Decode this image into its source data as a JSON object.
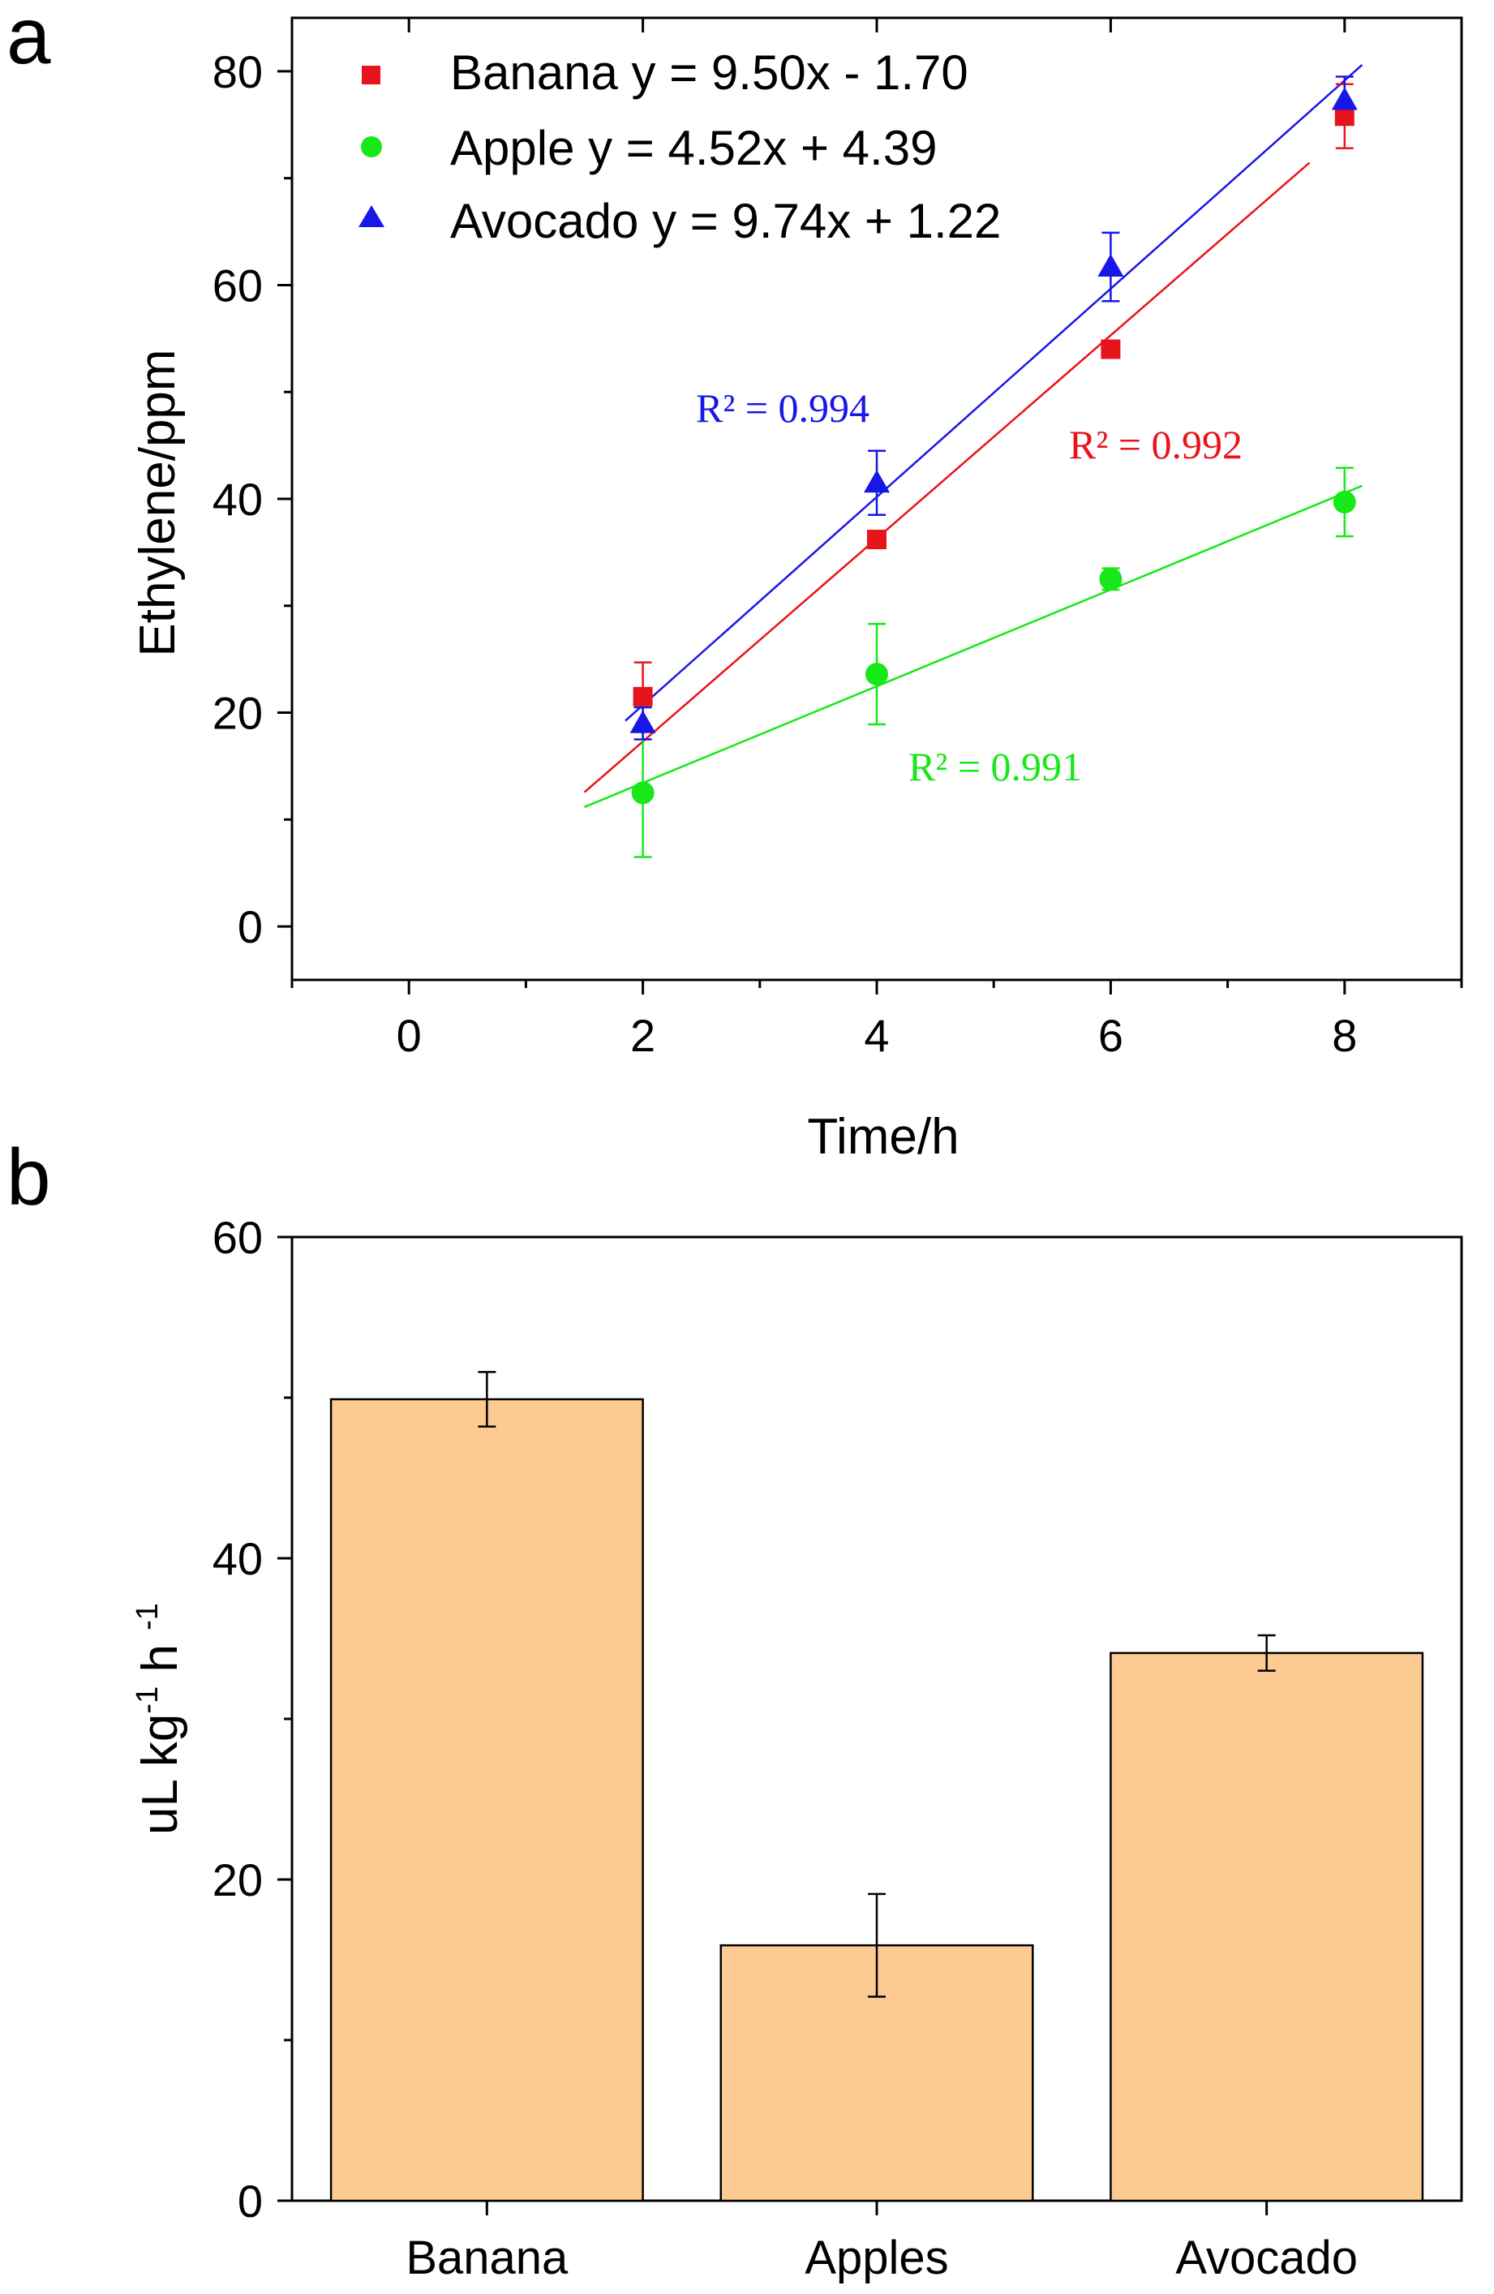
{
  "chart_data": [
    {
      "panel": "a",
      "type": "scatter",
      "title": "",
      "xlabel": "Time/h",
      "ylabel": "Ethylene/ppm",
      "xlim": [
        -1,
        9
      ],
      "ylim": [
        -5,
        85
      ],
      "xticks": [
        0,
        2,
        4,
        6,
        8
      ],
      "yticks": [
        0,
        20,
        40,
        60,
        80
      ],
      "tick_labels_x": [
        "0",
        "2",
        "4",
        "6",
        "8"
      ],
      "tick_labels_y": [
        "0",
        "20",
        "40",
        "60",
        "80"
      ],
      "legend_position": "top-left",
      "series": [
        {
          "name": "Banana",
          "equation": "y = 9.50x - 1.70",
          "legend_label": "Banana y = 9.50x - 1.70",
          "marker": "square",
          "color": "#e8141b",
          "x": [
            2,
            4,
            6,
            8
          ],
          "y": [
            21.5,
            36.2,
            54.0,
            75.8
          ],
          "err": [
            3.2,
            0.8,
            0.8,
            3.0
          ],
          "fit": {
            "slope": 9.5,
            "intercept": -1.7,
            "x_range": [
              1.5,
              7.7
            ]
          },
          "r2_label": "R² = 0.992"
        },
        {
          "name": "Apple",
          "equation": "y = 4.52x + 4.39",
          "legend_label": "Apple y = 4.52x + 4.39",
          "marker": "circle",
          "color": "#17e817",
          "x": [
            2,
            4,
            6,
            8
          ],
          "y": [
            12.5,
            23.6,
            32.5,
            39.7
          ],
          "err": [
            6.0,
            4.7,
            1.0,
            3.2
          ],
          "fit": {
            "slope": 4.52,
            "intercept": 4.39,
            "x_range": [
              1.5,
              8.15
            ]
          },
          "r2_label": "R² = 0.991"
        },
        {
          "name": "Avocado",
          "equation": "y = 9.74x + 1.22",
          "legend_label": "Avocado y = 9.74x + 1.22",
          "marker": "triangle",
          "color": "#1717e8",
          "x": [
            2,
            4,
            6,
            8
          ],
          "y": [
            19.0,
            41.5,
            61.7,
            77.3
          ],
          "err": [
            1.5,
            3.0,
            3.2,
            2.2
          ],
          "fit": {
            "slope": 9.74,
            "intercept": 1.22,
            "x_range": [
              1.85,
              8.15
            ]
          },
          "r2_label": "R² = 0.994"
        }
      ]
    },
    {
      "panel": "b",
      "type": "bar",
      "title": "",
      "xlabel": "",
      "ylabel": "uL kg-1 h -1",
      "ylabel_parts": {
        "a": "uL kg",
        "sup1": "-1",
        "b": " h ",
        "sup2": "-1"
      },
      "ylim": [
        0,
        60
      ],
      "yticks": [
        0,
        20,
        40,
        60
      ],
      "tick_labels_y": [
        "0",
        "20",
        "40",
        "60"
      ],
      "categories": [
        "Banana",
        "Apples",
        "Avocado"
      ],
      "values": [
        49.9,
        15.9,
        34.1
      ],
      "errors": [
        1.7,
        3.2,
        1.1
      ],
      "bar_color": "#fccb93"
    }
  ]
}
